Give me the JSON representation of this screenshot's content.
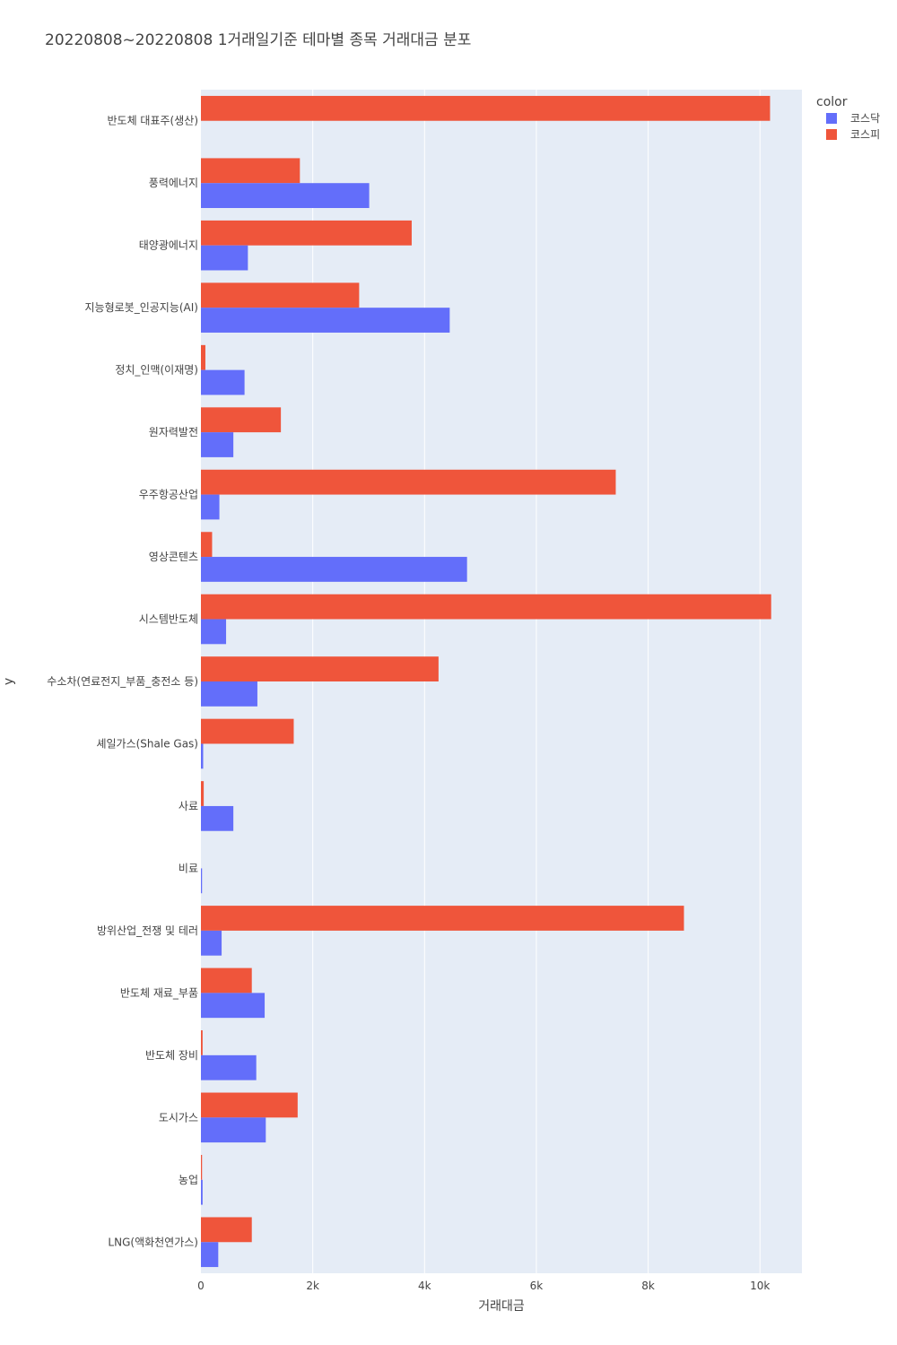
{
  "chart_data": {
    "type": "bar",
    "orientation": "horizontal",
    "barmode": "group",
    "title": "20220808~20220808 1거래일기준 테마별 종목 거래대금 분포",
    "xlabel": "거래대금",
    "ylabel": "y",
    "xlim": [
      0,
      10750
    ],
    "xticks": [
      {
        "value": 0,
        "label": "0"
      },
      {
        "value": 2000,
        "label": "2k"
      },
      {
        "value": 4000,
        "label": "4k"
      },
      {
        "value": 6000,
        "label": "6k"
      },
      {
        "value": 8000,
        "label": "8k"
      },
      {
        "value": 10000,
        "label": "10k"
      }
    ],
    "grid": true,
    "legend": {
      "title": "color",
      "position": "top-right"
    },
    "categories": [
      "반도체 대표주(생산)",
      "풍력에너지",
      "태양광에너지",
      "지능형로봇_인공지능(AI)",
      "정치_인맥(이재명)",
      "원자력발전",
      "우주항공산업",
      "영상콘텐츠",
      "시스템반도체",
      "수소차(연료전지_부품_충전소 등)",
      "셰일가스(Shale Gas)",
      "사료",
      "비료",
      "방위산업_전쟁 및 테러",
      "반도체 재료_부품",
      "반도체 장비",
      "도시가스",
      "농업",
      "LNG(액화천연가스)"
    ],
    "series": [
      {
        "name": "코스피",
        "color": "#ef553b",
        "values": [
          10180,
          1770,
          3770,
          2830,
          80,
          1430,
          7420,
          200,
          10200,
          4250,
          1660,
          50,
          0,
          8640,
          910,
          30,
          1730,
          20,
          910
        ]
      },
      {
        "name": "코스닥",
        "color": "#636efa",
        "values": [
          0,
          3010,
          840,
          4450,
          780,
          580,
          330,
          4760,
          450,
          1010,
          40,
          580,
          20,
          370,
          1140,
          990,
          1160,
          30,
          310
        ]
      }
    ]
  }
}
